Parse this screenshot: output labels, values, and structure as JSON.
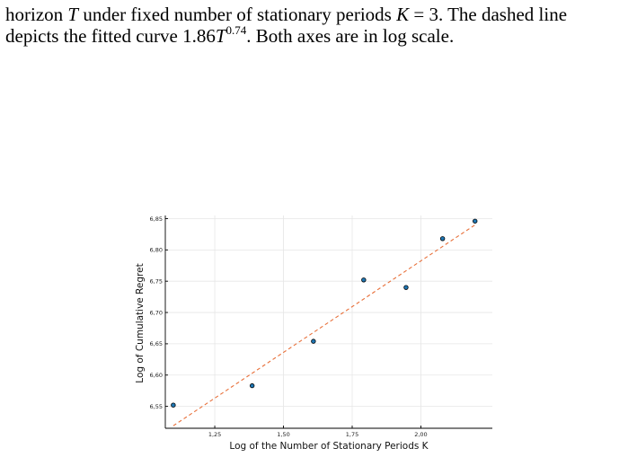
{
  "caption": {
    "line1_a": "horizon ",
    "line1_T": "T",
    "line1_b": " under fixed number of stationary periods ",
    "line1_K": "K",
    "line1_c": " = 3.  The dashed line",
    "line2_a": "depicts the fitted curve 1.86",
    "line2_T": "T",
    "line2_exp": "0.74",
    "line2_b": ".  Both axes are in log scale."
  },
  "chart_data": {
    "type": "scatter",
    "xlabel": "Log of the Number of Stationary Periods K",
    "ylabel": "Log of Cumulative Regret",
    "xlim": [
      1.07,
      2.26
    ],
    "ylim": [
      6.515,
      6.855
    ],
    "x_ticks": [
      1.25,
      1.5,
      1.75,
      2.0
    ],
    "x_tick_labels": [
      "1,25",
      "1,50",
      "1,75",
      "2,00"
    ],
    "y_ticks": [
      6.55,
      6.6,
      6.65,
      6.7,
      6.75,
      6.8,
      6.85
    ],
    "y_tick_labels": [
      "6,55",
      "6,60",
      "6,65",
      "6,70",
      "6,75",
      "6,80",
      "6,85"
    ],
    "grid": true,
    "legend": "none",
    "series": [
      {
        "type": "scatter",
        "x": [
          1.099,
          1.386,
          1.609,
          1.792,
          1.946,
          2.079,
          2.197
        ],
        "y": [
          6.552,
          6.583,
          6.654,
          6.752,
          6.74,
          6.818,
          6.846
        ]
      },
      {
        "type": "line",
        "style": "dashed",
        "x": [
          1.099,
          2.197
        ],
        "y": [
          6.519,
          6.84
        ]
      }
    ],
    "colors": {
      "points": "#1f77b4",
      "fit_line": "#e8703a"
    }
  }
}
